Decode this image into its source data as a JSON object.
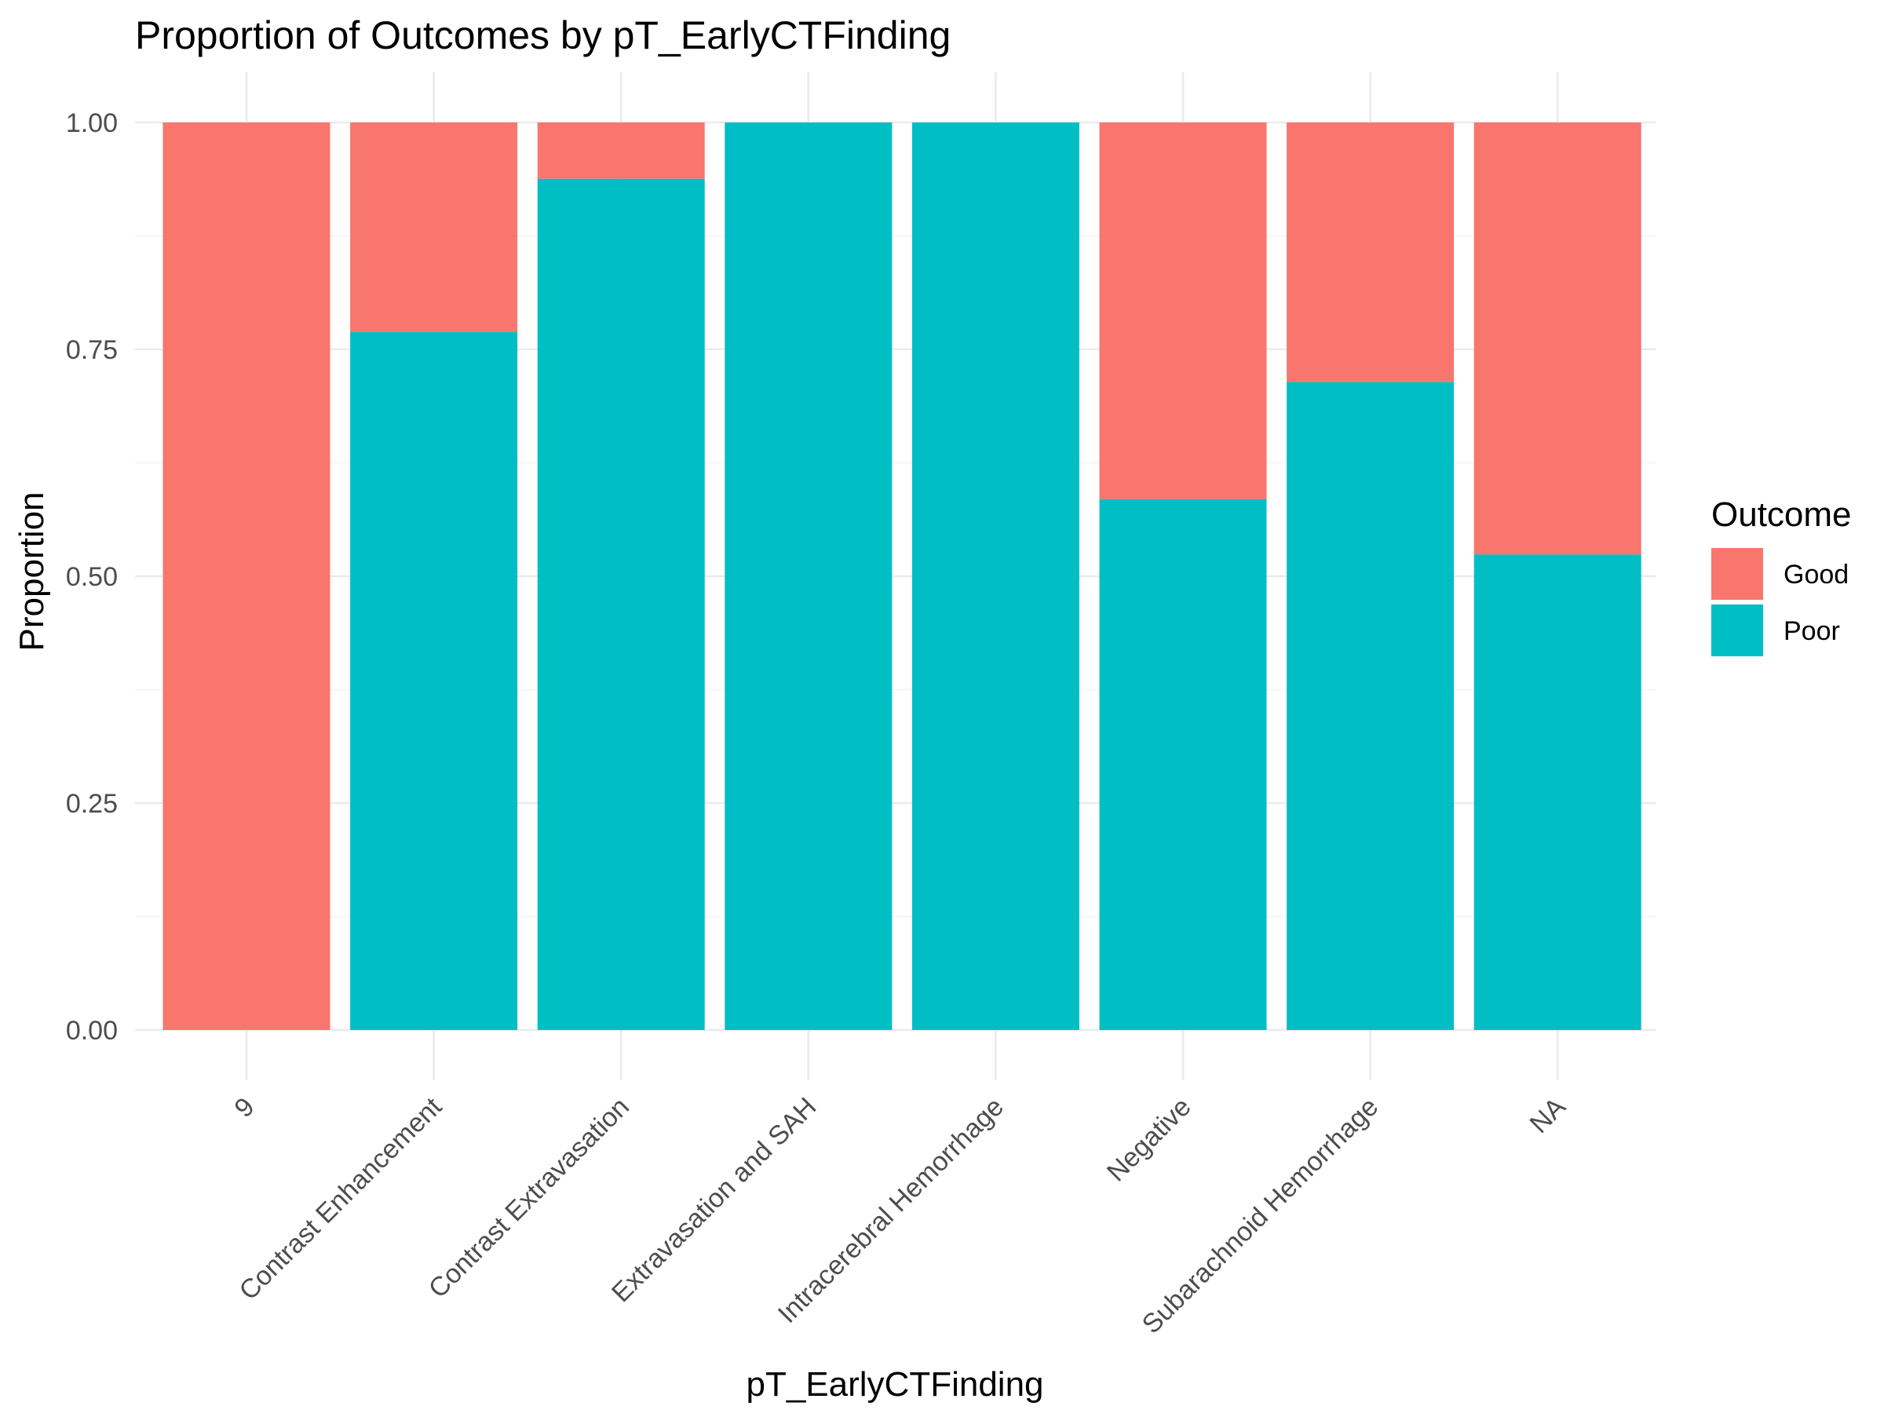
{
  "chart_data": {
    "type": "bar",
    "stacked": true,
    "title": "Proportion of Outcomes by pT_EarlyCTFinding",
    "xlabel": "pT_EarlyCTFinding",
    "ylabel": "Proportion",
    "ylim": [
      0,
      1
    ],
    "yticks": [
      "0.00",
      "0.25",
      "0.50",
      "0.75",
      "1.00"
    ],
    "grid": true,
    "legend": {
      "title": "Outcome",
      "placement": "right"
    },
    "categories": [
      "9",
      "Contrast Enhancement",
      "Contrast Extravasation",
      "Extravasation and SAH",
      "Intracerebral Hemorrhage",
      "Negative",
      "Subarachnoid Hemorrhage",
      "NA"
    ],
    "series": [
      {
        "name": "Good",
        "color": "#F8766D",
        "values": [
          1.0,
          0.231,
          0.062,
          0.0,
          0.0,
          0.415,
          0.286,
          0.476
        ]
      },
      {
        "name": "Poor",
        "color": "#00BFC4",
        "values": [
          0.0,
          0.769,
          0.938,
          1.0,
          1.0,
          0.585,
          0.714,
          0.524
        ]
      }
    ]
  }
}
